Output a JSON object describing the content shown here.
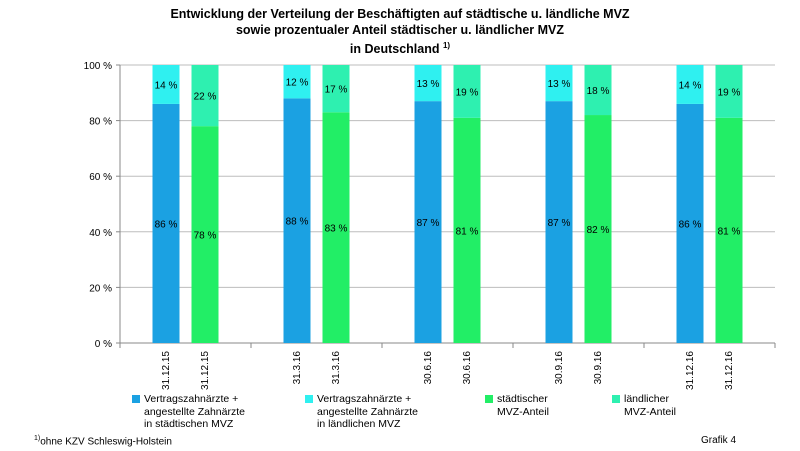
{
  "title": {
    "line1": "Entwicklung der Verteilung der Beschäftigten auf städtische u. ländliche MVZ",
    "line2": "sowie prozentualer Anteil städtischer u. ländlicher MVZ",
    "line3": "in Deutschland",
    "line3_sup": "1)"
  },
  "footnote": {
    "sup": "1)",
    "text": "ohne KZV Schleswig-Holstein"
  },
  "grafik": "Grafik 4",
  "colors": {
    "staedt_zahn": "#1ba1e2",
    "laendl_zahn": "#2ff0f0",
    "staedt_mvz": "#22ee66",
    "laendl_mvz": "#2ef0b0",
    "grid": "#bdbdbd",
    "axis": "#888888"
  },
  "legend": [
    {
      "label": "Vertragszahnärzte +\nangestellte Zahnärzte\nin städtischen MVZ",
      "color_key": "staedt_zahn"
    },
    {
      "label": "Vertragszahnärzte +\nangestellte Zahnärzte\nin ländlichen MVZ",
      "color_key": "laendl_zahn"
    },
    {
      "label": "städtischer\nMVZ-Anteil",
      "color_key": "staedt_mvz"
    },
    {
      "label": "ländlicher\nMVZ-Anteil",
      "color_key": "laendl_mvz"
    }
  ],
  "chart_data": {
    "type": "bar",
    "stacked": true,
    "percent_stacked": true,
    "y_ticks": [
      "0 %",
      "20 %",
      "40 %",
      "60 %",
      "80 %",
      "100 %"
    ],
    "ylim": [
      0,
      100
    ],
    "grid": true,
    "legend_position": "bottom",
    "groups": [
      {
        "bars": [
          {
            "category": "31.12.15",
            "bottom": 86,
            "top": 14,
            "bottom_label": "86 %",
            "top_label": "14 %",
            "kind": "zahnaerzte"
          },
          {
            "category": "31.12.15",
            "bottom": 78,
            "top": 22,
            "bottom_label": "78 %",
            "top_label": "22 %",
            "kind": "mvz"
          }
        ]
      },
      {
        "bars": [
          {
            "category": "31.3.16",
            "bottom": 88,
            "top": 12,
            "bottom_label": "88 %",
            "top_label": "12 %",
            "kind": "zahnaerzte"
          },
          {
            "category": "31.3.16",
            "bottom": 83,
            "top": 17,
            "bottom_label": "83 %",
            "top_label": "17 %",
            "kind": "mvz"
          }
        ]
      },
      {
        "bars": [
          {
            "category": "30.6.16",
            "bottom": 87,
            "top": 13,
            "bottom_label": "87 %",
            "top_label": "13 %",
            "kind": "zahnaerzte"
          },
          {
            "category": "30.6.16",
            "bottom": 81,
            "top": 19,
            "bottom_label": "81 %",
            "top_label": "19 %",
            "kind": "mvz"
          }
        ]
      },
      {
        "bars": [
          {
            "category": "30.9.16",
            "bottom": 87,
            "top": 13,
            "bottom_label": "87 %",
            "top_label": "13 %",
            "kind": "zahnaerzte"
          },
          {
            "category": "30.9.16",
            "bottom": 82,
            "top": 18,
            "bottom_label": "82 %",
            "top_label": "18 %",
            "kind": "mvz"
          }
        ]
      },
      {
        "bars": [
          {
            "category": "31.12.16",
            "bottom": 86,
            "top": 14,
            "bottom_label": "86 %",
            "top_label": "14 %",
            "kind": "zahnaerzte"
          },
          {
            "category": "31.12.16",
            "bottom": 81,
            "top": 19,
            "bottom_label": "81 %",
            "top_label": "19 %",
            "kind": "mvz"
          }
        ]
      }
    ]
  }
}
